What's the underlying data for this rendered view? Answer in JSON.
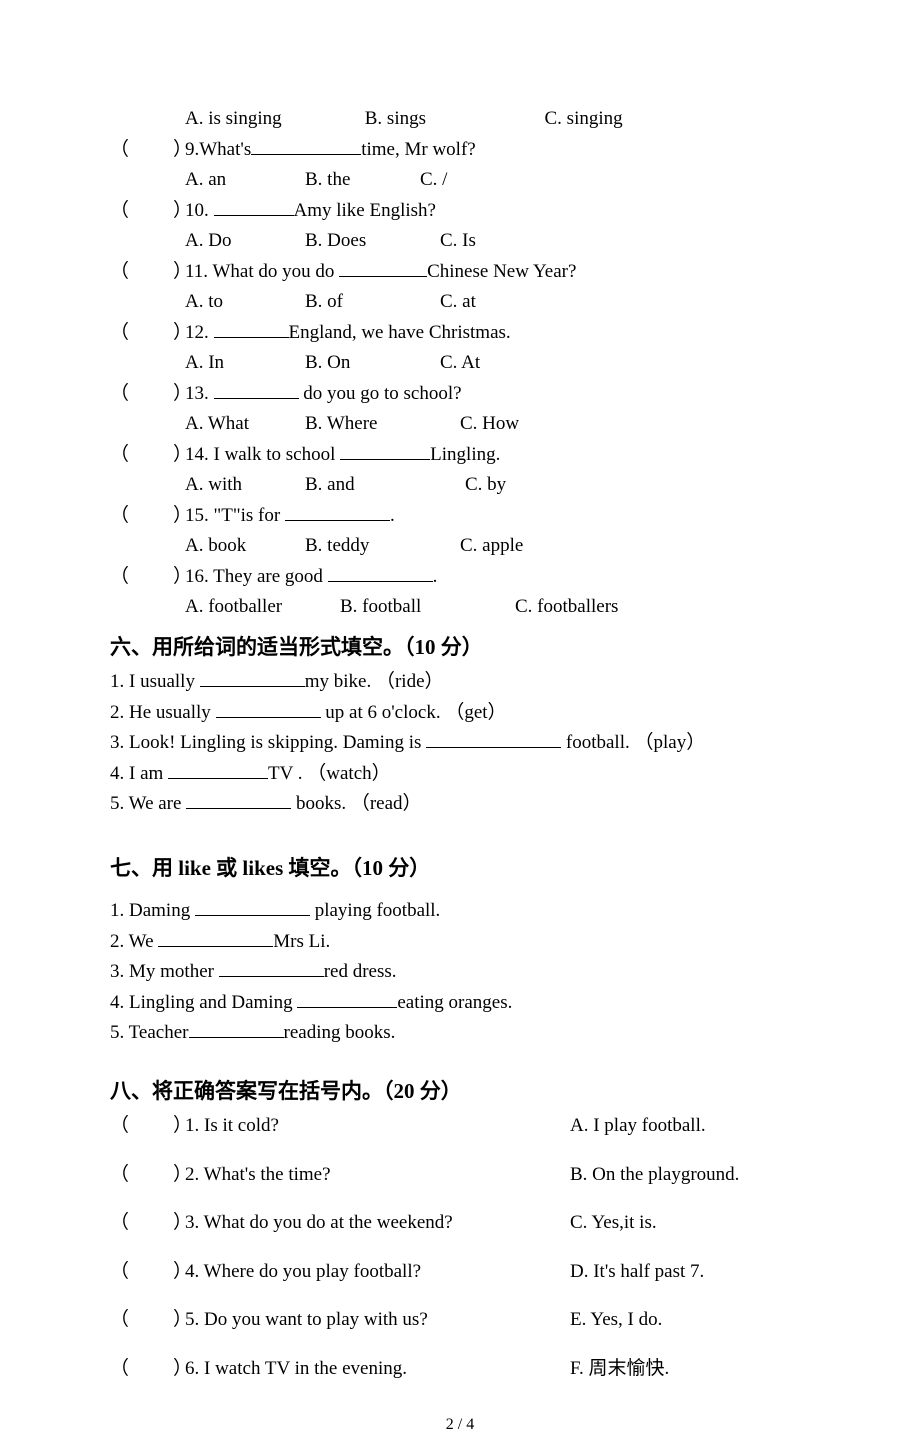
{
  "mcq_opts_first": {
    "a": "A. is singing",
    "b": "B. sings",
    "c": "C. singing"
  },
  "mcq": [
    {
      "q": "9.What's",
      "tail": "time, Mr wolf?",
      "blank_w": 110,
      "opts": [
        "A. an",
        "B. the",
        "C. /"
      ],
      "opt_widths": [
        120,
        115,
        60
      ]
    },
    {
      "q": "10. ",
      "tail": "Amy like English?",
      "blank_w": 80,
      "opts": [
        "A. Do",
        "B. Does",
        "C. Is"
      ],
      "opt_widths": [
        120,
        135,
        60
      ]
    },
    {
      "q": "11. What do you do ",
      "tail": "Chinese New Year?",
      "blank_w": 88,
      "opts": [
        "A. to",
        "B. of",
        "C. at"
      ],
      "opt_widths": [
        120,
        135,
        60
      ]
    },
    {
      "q": "12. ",
      "tail": "England, we have Christmas.",
      "blank_w": 75,
      "opts": [
        "A. In",
        "B. On",
        "C. At"
      ],
      "opt_widths": [
        120,
        135,
        60
      ]
    },
    {
      "q": "13. ",
      "tail": " do you go to school?",
      "blank_w": 85,
      "opts": [
        "A. What",
        "B. Where",
        "C. How"
      ],
      "opt_widths": [
        120,
        155,
        80
      ]
    },
    {
      "q": "14. I walk to school ",
      "tail": "Lingling.",
      "blank_w": 90,
      "opts": [
        "A. with",
        "B. and",
        "C. by"
      ],
      "opt_widths": [
        120,
        160,
        60
      ]
    },
    {
      "q": "15. \"T\"is for ",
      "tail": ".",
      "blank_w": 105,
      "opts": [
        "A. book",
        "B. teddy",
        "C. apple"
      ],
      "opt_widths": [
        120,
        155,
        90
      ]
    },
    {
      "q": "16. They are good ",
      "tail": ".",
      "blank_w": 105,
      "opts": [
        "A. footballer",
        "B. football",
        "C. footballers"
      ],
      "opt_widths": [
        155,
        175,
        120
      ]
    }
  ],
  "section6": {
    "title": "六、用所给词的适当形式填空。（10 分）",
    "items": [
      {
        "pre": "1. I usually ",
        "post": "my bike.  （ride）",
        "blank_w": 105
      },
      {
        "pre": "2. He usually ",
        "post": " up at 6 o'clock.   （get）",
        "blank_w": 105
      },
      {
        "pre": "3. Look! Lingling is skipping. Daming is ",
        "post": " football.  （play）",
        "blank_w": 135
      },
      {
        "pre": "4. I am ",
        "post": "TV .  （watch）",
        "blank_w": 100
      },
      {
        "pre": "5. We are ",
        "post": " books.  （read）",
        "blank_w": 105
      }
    ]
  },
  "section7": {
    "title": "七、用 like 或 likes 填空。（10 分）",
    "items": [
      {
        "pre": "1. Daming ",
        "post": " playing football.",
        "blank_w": 115
      },
      {
        "pre": "2. We ",
        "post": "Mrs Li.",
        "blank_w": 115
      },
      {
        "pre": "3. My mother ",
        "post": "red dress.",
        "blank_w": 105
      },
      {
        "pre": "4. Lingling and Daming ",
        "post": "eating oranges.",
        "blank_w": 100
      },
      {
        "pre": "5. Teacher",
        "post": "reading books.",
        "blank_w": 95
      }
    ]
  },
  "section8": {
    "title": "八、将正确答案写在括号内。（20 分）",
    "items": [
      {
        "left": "1. Is it cold?",
        "right": "A. I play football."
      },
      {
        "left": " 2. What's the time?",
        "right": "B. On the playground."
      },
      {
        "left": " 3. What do you do at the weekend?",
        "right": " C. Yes,it is."
      },
      {
        "left": " 4. Where do you play football?",
        "right": " D. It's half past 7."
      },
      {
        "left": " 5. Do you want to play with us?",
        "right": "  E. Yes, I do."
      },
      {
        "left": " 6. I watch TV in the evening.",
        "right": "  F.  周末愉快."
      }
    ]
  },
  "paren_open": "（",
  "paren_close": "）",
  "page_number": "2  /  4"
}
